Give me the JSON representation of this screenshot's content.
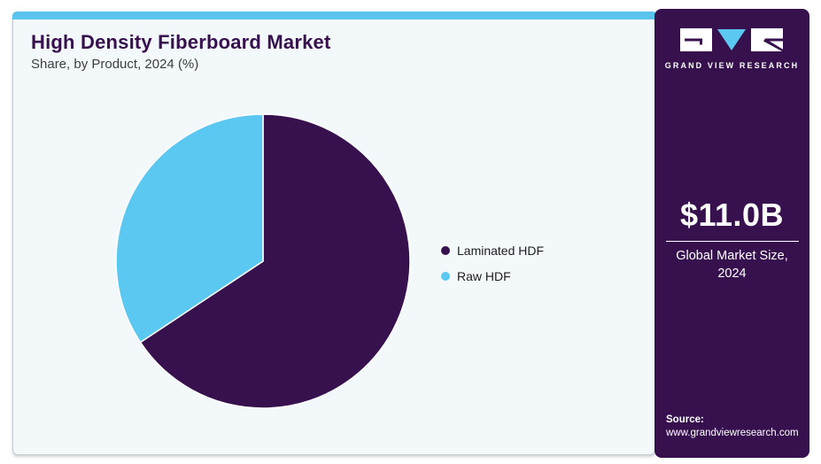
{
  "header": {
    "title": "High Density Fiberboard Market",
    "subtitle": "Share, by Product, 2024 (%)"
  },
  "chart_data": {
    "type": "pie",
    "title": "High Density Fiberboard Market Share, by Product, 2024 (%)",
    "categories": [
      "Laminated HDF",
      "Raw HDF"
    ],
    "values": [
      65.7,
      34.3
    ],
    "unit": "%",
    "colors": [
      "#36114e",
      "#5bc8f2"
    ],
    "start_angle": "top",
    "direction": "clockwise",
    "legend_position": "right",
    "slice_stroke": "#ffffff"
  },
  "sidebar": {
    "logo_wordmark": "GRAND VIEW RESEARCH",
    "market_size_value": "$11.0B",
    "market_size_label": "Global Market Size, 2024",
    "source_label": "Source:",
    "source_url": "www.grandviewresearch.com"
  },
  "colors": {
    "brand_purple": "#36114e",
    "accent_blue": "#5bc4ee",
    "pie_blue": "#5bc8f2",
    "card_bg": "#f3f8fb",
    "card_border": "#c7ccd5",
    "text_dark": "#1d1d22"
  }
}
